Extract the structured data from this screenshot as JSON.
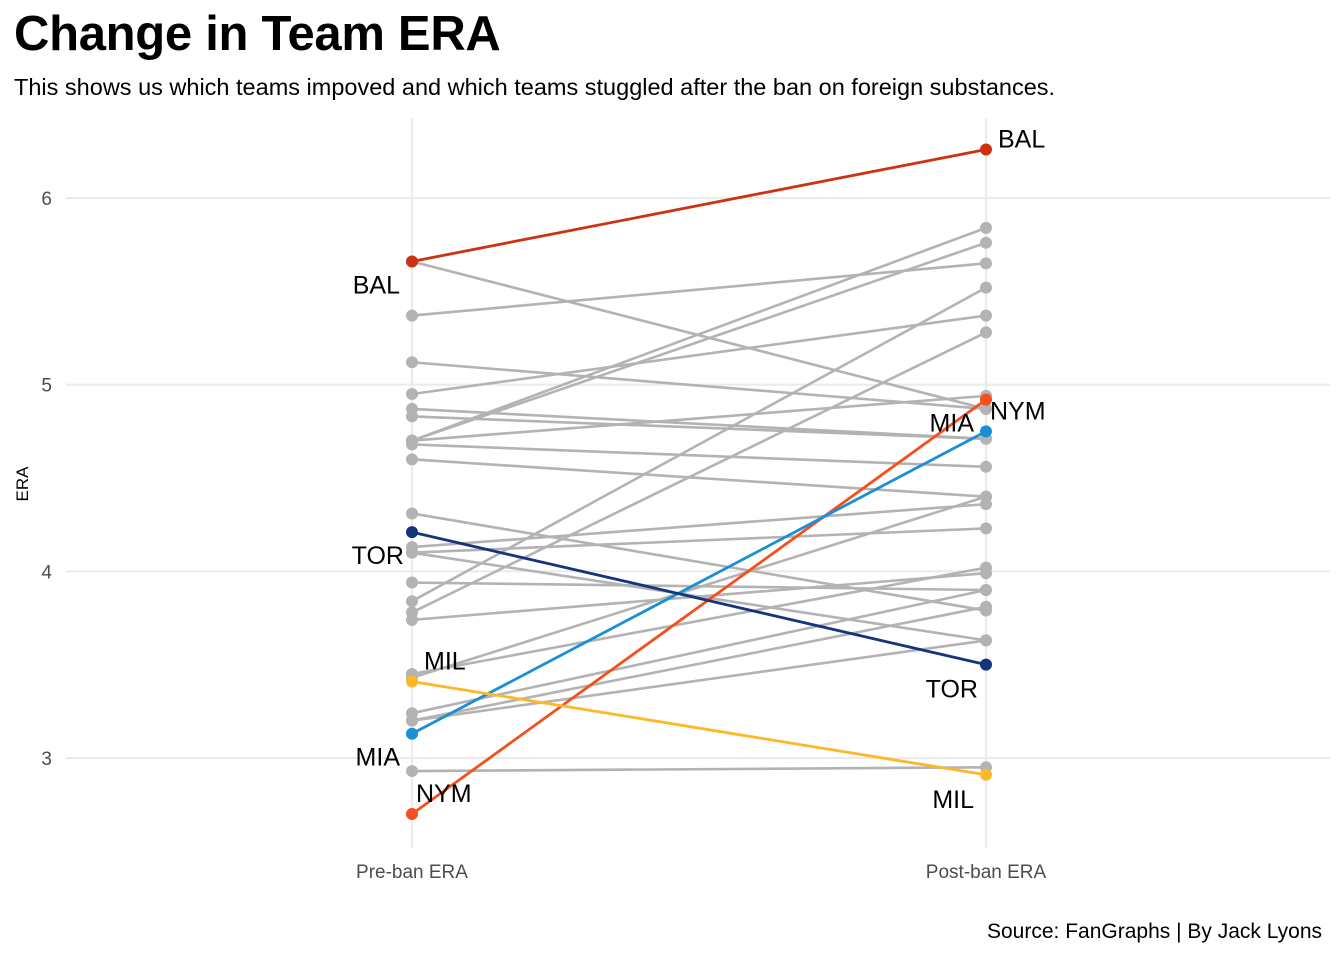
{
  "chart_data": {
    "type": "line",
    "subtype": "slope",
    "title": "Change in Team ERA",
    "subtitle": "This shows us which teams impoved and which teams stuggled after the ban on foreign substances.",
    "caption": "Source: FanGraphs | By Jack Lyons",
    "xlabel": "",
    "ylabel": "ERA",
    "categories": [
      "Pre-ban ERA",
      "Post-ban ERA"
    ],
    "ylim": [
      2.55,
      6.45
    ],
    "yticks": [
      3,
      4,
      5,
      6
    ],
    "grid": true,
    "legend": "none",
    "default_color": "#b3b3b3",
    "highlighted": [
      {
        "team": "BAL",
        "pre": 5.66,
        "post": 6.26,
        "color": "#cc3311"
      },
      {
        "team": "NYM",
        "pre": 2.7,
        "post": 4.92,
        "color": "#1a8fd6",
        "pre_color": "#f44f1e"
      },
      {
        "team": "MIA",
        "pre": 3.13,
        "post": 4.75,
        "color": "#f44f1e",
        "pre_color": "#1a8fd6"
      },
      {
        "team": "TOR",
        "pre": 4.21,
        "post": 3.5,
        "color": "#14357a"
      },
      {
        "team": "MIL",
        "pre": 3.41,
        "post": 2.91,
        "color": "#fbb829"
      }
    ],
    "series": [
      {
        "name": "BAL",
        "values": [
          5.66,
          6.26
        ],
        "color": "#cc3311",
        "highlight": true
      },
      {
        "name": "NYM",
        "values": [
          2.7,
          4.92
        ],
        "color": "#f44f1e",
        "highlight": true
      },
      {
        "name": "MIA",
        "values": [
          3.13,
          4.75
        ],
        "color": "#1a8fd6",
        "highlight": true
      },
      {
        "name": "TOR",
        "values": [
          4.21,
          3.5
        ],
        "color": "#14357a",
        "highlight": true
      },
      {
        "name": "MIL",
        "values": [
          3.41,
          2.91
        ],
        "color": "#fbb829",
        "highlight": true
      },
      {
        "name": "team-06",
        "values": [
          5.66,
          4.87
        ]
      },
      {
        "name": "team-07",
        "values": [
          5.37,
          5.65
        ]
      },
      {
        "name": "team-08",
        "values": [
          5.12,
          4.87
        ]
      },
      {
        "name": "team-09",
        "values": [
          4.95,
          5.37
        ]
      },
      {
        "name": "team-10",
        "values": [
          4.87,
          4.71
        ]
      },
      {
        "name": "team-11",
        "values": [
          4.83,
          4.71
        ]
      },
      {
        "name": "team-12",
        "values": [
          4.7,
          5.84
        ]
      },
      {
        "name": "team-13",
        "values": [
          4.7,
          5.76
        ]
      },
      {
        "name": "team-14",
        "values": [
          4.7,
          4.94
        ]
      },
      {
        "name": "team-15",
        "values": [
          4.68,
          4.56
        ]
      },
      {
        "name": "team-16",
        "values": [
          4.6,
          4.4
        ]
      },
      {
        "name": "team-17",
        "values": [
          4.31,
          3.79
        ]
      },
      {
        "name": "team-18",
        "values": [
          4.13,
          4.36
        ]
      },
      {
        "name": "team-19",
        "values": [
          4.1,
          4.23
        ]
      },
      {
        "name": "team-20",
        "values": [
          4.1,
          3.63
        ]
      },
      {
        "name": "team-21",
        "values": [
          3.94,
          3.9
        ]
      },
      {
        "name": "team-22",
        "values": [
          3.84,
          5.52
        ]
      },
      {
        "name": "team-23",
        "values": [
          3.78,
          5.28
        ]
      },
      {
        "name": "team-24",
        "values": [
          3.74,
          3.99
        ]
      },
      {
        "name": "team-25",
        "values": [
          3.45,
          4.02
        ]
      },
      {
        "name": "team-26",
        "values": [
          3.43,
          4.4
        ]
      },
      {
        "name": "team-27",
        "values": [
          3.24,
          3.9
        ]
      },
      {
        "name": "team-28",
        "values": [
          3.2,
          3.81
        ]
      },
      {
        "name": "team-29",
        "values": [
          3.2,
          3.63
        ]
      },
      {
        "name": "team-30",
        "values": [
          2.93,
          2.95
        ]
      }
    ],
    "labels": {
      "left": [
        {
          "team": "BAL",
          "value": 5.66
        },
        {
          "team": "TOR",
          "value": 4.21
        },
        {
          "team": "MIL",
          "value": 3.41
        },
        {
          "team": "MIA",
          "value": 3.13
        },
        {
          "team": "NYM",
          "value": 2.7
        }
      ],
      "right": [
        {
          "team": "BAL",
          "value": 6.26
        },
        {
          "team": "NYM",
          "value": 4.92
        },
        {
          "team": "MIA",
          "value": 4.75
        },
        {
          "team": "TOR",
          "value": 3.5
        },
        {
          "team": "MIL",
          "value": 2.91
        }
      ]
    }
  }
}
